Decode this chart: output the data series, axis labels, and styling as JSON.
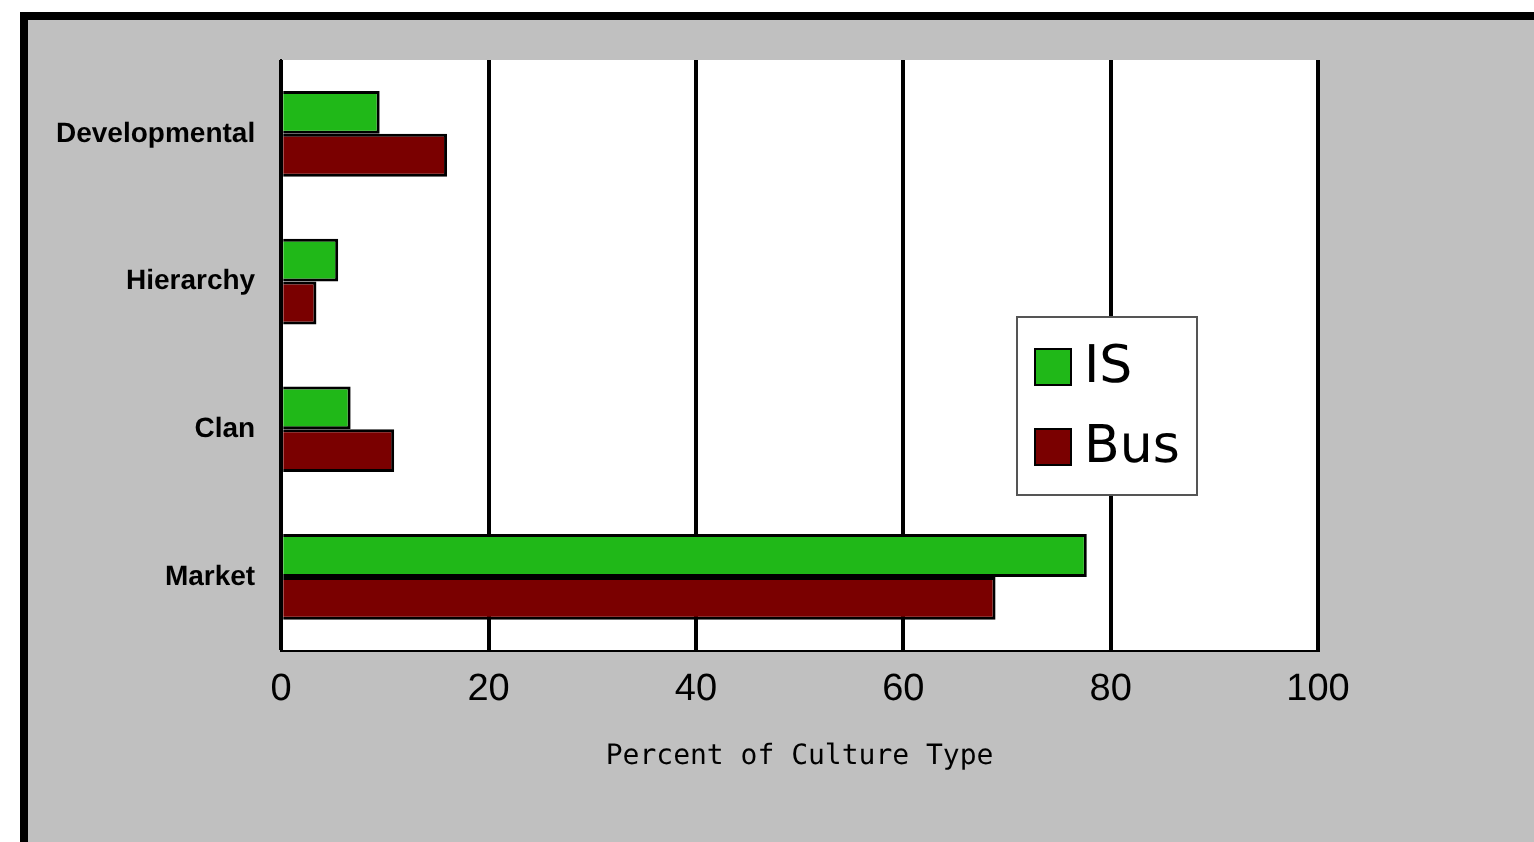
{
  "chart_data": {
    "type": "bar",
    "orientation": "horizontal",
    "xlabel": "Percent of Culture Type",
    "categories": [
      "Developmental",
      "Hierarchy",
      "Clan",
      "Market"
    ],
    "series": [
      {
        "name": "IS",
        "color": "#20b818",
        "values": [
          9.5,
          5.5,
          6.7,
          77.7
        ]
      },
      {
        "name": "Bus",
        "color": "#7a0000",
        "values": [
          16,
          3.4,
          10.9,
          68.9
        ]
      }
    ],
    "xlim": [
      0,
      100
    ],
    "xticks": [
      0,
      20,
      40,
      60,
      80,
      100
    ],
    "grid": "x",
    "legend": "right"
  }
}
